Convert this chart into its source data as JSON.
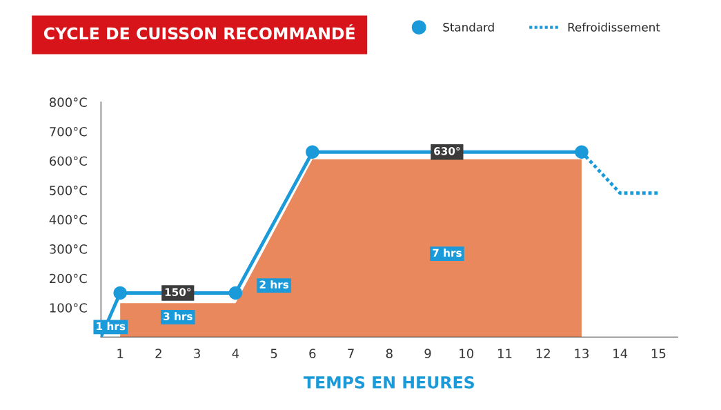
{
  "chart_data": {
    "type": "line",
    "title": "CYCLE DE CUISSON RECOMMANDÉ",
    "xlabel": "TEMPS EN HEURES",
    "xlim": [
      0.5,
      15.5
    ],
    "xticks": [
      1,
      2,
      3,
      4,
      5,
      6,
      7,
      8,
      9,
      10,
      11,
      12,
      13,
      14,
      15
    ],
    "ylim": [
      0,
      800
    ],
    "yticks": [
      {
        "value": 100,
        "label": "100°C"
      },
      {
        "value": 200,
        "label": "200°C"
      },
      {
        "value": 300,
        "label": "300°C"
      },
      {
        "value": 400,
        "label": "400°C"
      },
      {
        "value": 500,
        "label": "500°C"
      },
      {
        "value": 600,
        "label": "600°C"
      },
      {
        "value": 700,
        "label": "700°C"
      },
      {
        "value": 800,
        "label": "800°C"
      }
    ],
    "grid": false,
    "legend": "top right",
    "series": [
      {
        "type": "area",
        "color": "#e8885c",
        "x": [
          1,
          4,
          6,
          13
        ],
        "values": [
          115,
          115,
          605,
          605
        ]
      },
      {
        "color": "#1a9ad9",
        "x": [
          0.5,
          1
        ],
        "values": [
          0,
          150
        ],
        "line_style": "solid"
      },
      {
        "name": "Standard",
        "color": "#1a9ad9",
        "x": [
          1,
          4,
          6,
          13
        ],
        "values": [
          150,
          150,
          630,
          630
        ],
        "marker": "circle",
        "line_style": "solid"
      },
      {
        "name": "Refroidissement",
        "color": "#1a9ad9",
        "x": [
          13,
          14,
          15
        ],
        "values": [
          630,
          490,
          490
        ],
        "line_style": "dotted"
      }
    ],
    "annotations": [
      {
        "text": "150°",
        "x": 2.5,
        "y": 150
      },
      {
        "text": "630°",
        "x": 9.5,
        "y": 630
      },
      "1 hrs",
      "3 hrs",
      "2 hrs",
      "7 hrs"
    ]
  }
}
